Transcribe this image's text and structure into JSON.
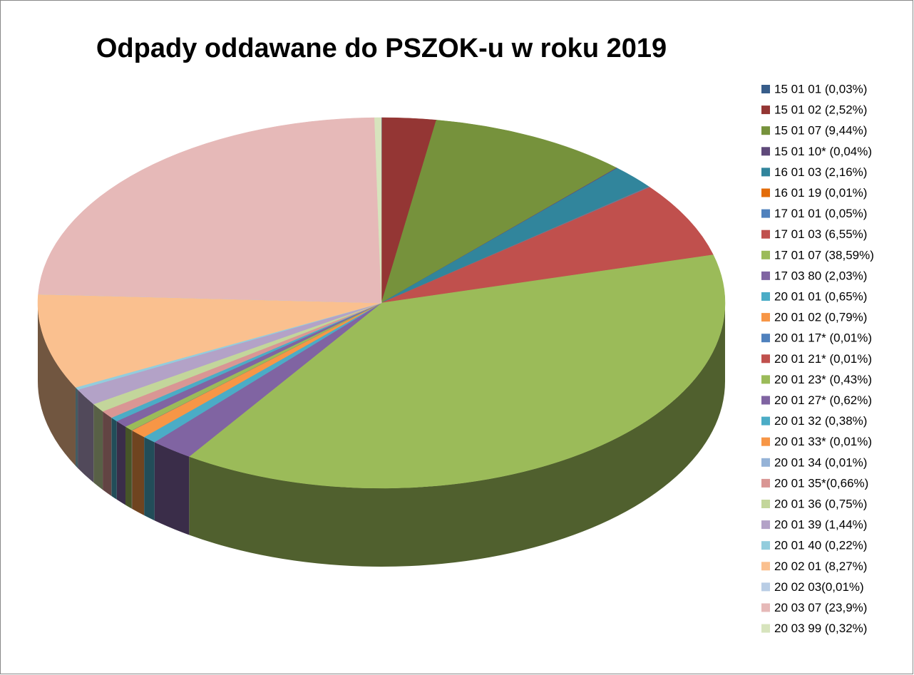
{
  "chart_data": {
    "type": "pie",
    "title": "Odpady oddawane do PSZOK-u w roku 2019",
    "categories": [
      "15 01 01 (0,03%)",
      "15 01 02 (2,52%)",
      "15 01 07 (9,44%)",
      "15 01 10* (0,04%)",
      "16 01 03 (2,16%)",
      "16 01 19 (0,01%)",
      "17 01 01 (0,05%)",
      "17 01 03 (6,55%)",
      "17 01 07 (38,59%)",
      "17 03 80 (2,03%)",
      "20 01 01 (0,65%)",
      "20 01 02 (0,79%)",
      "20 01 17* (0,01%)",
      "20 01 21* (0,01%)",
      "20 01 23* (0,43%)",
      "20 01 27* (0,62%)",
      "20 01 32 (0,38%)",
      "20 01 33* (0,01%)",
      "20 01 34 (0,01%)",
      "20 01 35*(0,66%)",
      "20 01 36 (0,75%)",
      "20 01 39 (1,44%)",
      "20 01 40 (0,22%)",
      "20 02 01 (8,27%)",
      "20 02 03(0,01%)",
      "20 03 07 (23,9%)",
      "20 03 99 (0,32%)"
    ],
    "values": [
      0.03,
      2.52,
      9.44,
      0.04,
      2.16,
      0.01,
      0.05,
      6.55,
      38.59,
      2.03,
      0.65,
      0.79,
      0.01,
      0.01,
      0.43,
      0.62,
      0.38,
      0.01,
      0.01,
      0.66,
      0.75,
      1.44,
      0.22,
      8.27,
      0.01,
      23.9,
      0.32
    ],
    "colors": [
      "#385d8a",
      "#943634",
      "#76923c",
      "#5f497a",
      "#31859c",
      "#e36c09",
      "#4f81bd",
      "#c0504d",
      "#9bbb59",
      "#8064a2",
      "#4bacc6",
      "#f79646",
      "#4f81bd",
      "#c0504d",
      "#9bbb59",
      "#8064a2",
      "#4bacc6",
      "#f79646",
      "#95b3d7",
      "#d99694",
      "#c3d69b",
      "#b3a2c7",
      "#93cddd",
      "#fac08f",
      "#b9cde5",
      "#e6b9b8",
      "#d7e4bd"
    ]
  }
}
